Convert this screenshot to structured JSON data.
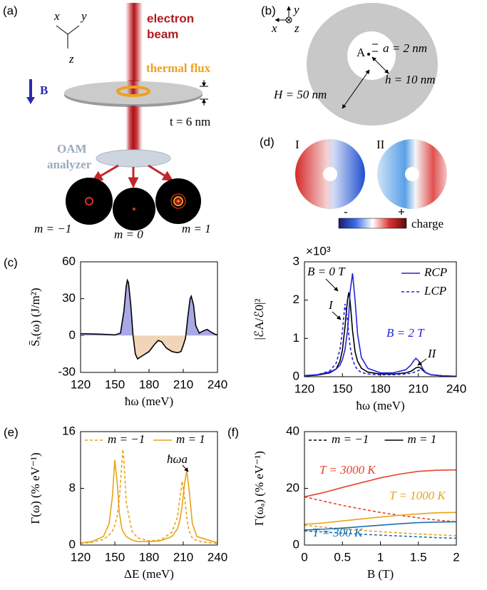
{
  "diagram_a": {
    "panel_label": "(a)",
    "axes": [
      "x",
      "y",
      "z"
    ],
    "beam_label": [
      "electron",
      "beam"
    ],
    "flux_label": "thermal flux",
    "field_label": "B",
    "thickness_label": "t = 6 nm",
    "analyzer_label": [
      "OAM",
      "analyzer"
    ],
    "outputs": [
      "m = −1",
      "m = 0",
      "m = 1"
    ]
  },
  "diagram_b": {
    "panel_label": "(b)",
    "axes": [
      "y",
      "x",
      "z"
    ],
    "point_label": "A",
    "inner_radius_label": "a = 2 nm",
    "hole_label": "h = 10 nm",
    "outer_label": "H = 50 nm"
  },
  "diagram_d": {
    "panel_label": "(d)",
    "modes": [
      "I",
      "II"
    ],
    "colorbar": {
      "min_label": "-",
      "max_label": "+",
      "label": "charge"
    }
  },
  "chart_data": [
    {
      "type": "line",
      "panel_label": "(c)",
      "y_label": "S̄ₓ(ω) (J/m²)",
      "x_label": "ħω (meV)",
      "x": [
        120,
        130,
        140,
        150,
        155,
        158,
        160,
        161,
        162,
        164,
        166,
        168,
        170,
        175,
        180,
        185,
        188,
        191,
        195,
        200,
        205,
        208,
        210,
        212,
        214,
        216,
        217,
        219,
        221,
        224,
        228,
        231,
        234,
        238,
        240
      ],
      "series": [
        {
          "color": "#000000",
          "values": [
            1.5,
            1.3,
            1,
            0.5,
            2,
            20,
            40,
            45,
            43,
            25,
            0,
            -15,
            -19,
            -16,
            -13,
            -7,
            -4,
            -5,
            -10,
            -13,
            -14,
            -13,
            -8,
            -2,
            15,
            30,
            32,
            25,
            8,
            2,
            4,
            5,
            3,
            1,
            0.5
          ]
        }
      ],
      "positive_color": "#a9a9e8",
      "negative_color": "#f2d5b8",
      "xlim": [
        120,
        240
      ],
      "xticks": [
        120,
        150,
        180,
        210,
        240
      ],
      "ylim": [
        -30,
        60
      ],
      "yticks": [
        -30,
        0,
        30,
        60
      ]
    },
    {
      "type": "line",
      "y_label": "|ℰA/ℰ0|²",
      "x_label": "ħω (meV)",
      "multiplier_label": "×10³",
      "x": [
        120,
        130,
        140,
        145,
        148,
        150,
        152,
        154,
        155,
        156,
        158,
        160,
        162,
        165,
        170,
        180,
        190,
        200,
        204,
        206,
        208,
        210,
        212,
        214,
        216,
        220,
        230,
        240
      ],
      "series": [
        {
          "color": "#000000",
          "values": [
            0.02,
            0.04,
            0.1,
            0.2,
            0.4,
            0.7,
            1.3,
            2.0,
            2.2,
            2.0,
            1.2,
            0.65,
            0.4,
            0.22,
            0.12,
            0.07,
            0.07,
            0.1,
            0.14,
            0.18,
            0.23,
            0.25,
            0.22,
            0.15,
            0.1,
            0.05,
            0.02,
            0.01
          ]
        },
        {
          "name": "RCP",
          "color": "#2323d6",
          "values": [
            0.03,
            0.05,
            0.12,
            0.2,
            0.3,
            0.45,
            0.7,
            1.2,
            1.6,
            2.2,
            2.7,
            2.0,
            1.1,
            0.5,
            0.22,
            0.1,
            0.1,
            0.18,
            0.3,
            0.4,
            0.48,
            0.42,
            0.3,
            0.18,
            0.1,
            0.05,
            0.02,
            0.01
          ]
        },
        {
          "name": "LCP",
          "color": "#2323d6",
          "dash": true,
          "values": [
            0.02,
            0.05,
            0.15,
            0.35,
            0.7,
            1.2,
            1.9,
            1.5,
            1.1,
            0.8,
            0.45,
            0.28,
            0.18,
            0.11,
            0.07,
            0.05,
            0.05,
            0.07,
            0.09,
            0.11,
            0.13,
            0.16,
            0.18,
            0.16,
            0.11,
            0.05,
            0.02,
            0.01
          ]
        }
      ],
      "legend_position": "upper right",
      "annotations": [
        {
          "text": "B = 0 T",
          "color": "#000000"
        },
        {
          "text": "B = 2 T",
          "color": "#2323d6"
        },
        {
          "text": "I",
          "color": "#000000"
        },
        {
          "text": "II",
          "color": "#000000"
        }
      ],
      "xlim": [
        120,
        240
      ],
      "xticks": [
        120,
        150,
        180,
        210,
        240
      ],
      "ylim": [
        0,
        3
      ],
      "yticks": [
        0,
        1,
        2,
        3
      ]
    },
    {
      "type": "line",
      "panel_label": "(e)",
      "y_label": "Γ(ω) (% eV⁻¹)",
      "x_label": "ΔE (meV)",
      "x": [
        120,
        130,
        140,
        145,
        148,
        150,
        152,
        154,
        156,
        157,
        158,
        160,
        165,
        170,
        180,
        190,
        200,
        205,
        207,
        209,
        211,
        213,
        215,
        218,
        222,
        226,
        230,
        240
      ],
      "series": [
        {
          "name": "m = −1",
          "color": "#e8a317",
          "dash": true,
          "values": [
            0.2,
            0.4,
            0.8,
            1.4,
            2,
            2.8,
            4,
            6.5,
            11,
            13.5,
            12,
            6,
            2,
            1,
            0.6,
            0.7,
            1.8,
            4,
            6.5,
            9,
            7,
            4,
            2,
            1,
            0.6,
            0.5,
            0.4,
            0.2
          ]
        },
        {
          "name": "m = 1",
          "color": "#e8a317",
          "values": [
            0.3,
            0.5,
            1.2,
            3,
            7,
            12,
            9,
            4.5,
            2.5,
            2,
            1.7,
            1.2,
            0.7,
            0.5,
            0.5,
            0.6,
            1.2,
            2.3,
            3.5,
            5.5,
            8.5,
            10.5,
            8,
            3,
            1.2,
            1,
            0.8,
            0.3
          ]
        }
      ],
      "legend_position": "top",
      "annotations": [
        {
          "text": "ħωa",
          "color": "#000000"
        }
      ],
      "xlim": [
        120,
        240
      ],
      "xticks": [
        120,
        150,
        180,
        210,
        240
      ],
      "ylim": [
        0,
        16
      ],
      "yticks": [
        0,
        8,
        16
      ]
    },
    {
      "type": "line",
      "panel_label": "(f)",
      "y_label": "Γ(ωₐ) (% eV⁻¹)",
      "x_label": "B (T)",
      "x": [
        0,
        0.25,
        0.5,
        0.75,
        1,
        1.25,
        1.5,
        1.75,
        2
      ],
      "series": [
        {
          "color": "#e8412c",
          "values": [
            17,
            18.5,
            20.3,
            22,
            23.7,
            25,
            26,
            26.4,
            26.5
          ]
        },
        {
          "color": "#e8412c",
          "dash": true,
          "values": [
            17,
            15.5,
            14,
            12.7,
            11.5,
            10.5,
            9.6,
            8.8,
            8.2
          ]
        },
        {
          "color": "#e8a317",
          "values": [
            7.3,
            7.8,
            8.5,
            9.2,
            9.9,
            10.5,
            11,
            11.4,
            11.5
          ]
        },
        {
          "color": "#e8a317",
          "dash": true,
          "values": [
            7,
            6.3,
            5.7,
            5.2,
            4.7,
            4.3,
            3.9,
            3.6,
            3.3
          ]
        },
        {
          "color": "#1a70b0",
          "values": [
            5.3,
            5.6,
            6,
            6.5,
            7,
            7.5,
            7.9,
            8.1,
            8.2
          ]
        },
        {
          "color": "#1a70b0",
          "dash": true,
          "values": [
            5,
            4.6,
            4.2,
            3.8,
            3.5,
            3.2,
            2.9,
            2.6,
            2.4
          ]
        }
      ],
      "legend": [
        {
          "name": "m = −1",
          "color": "#000000",
          "dash": true
        },
        {
          "name": "m = 1",
          "color": "#000000"
        }
      ],
      "legend_position": "top",
      "annotations": [
        {
          "text": "T = 3000 K",
          "color": "#e8412c"
        },
        {
          "text": "T = 1000 K",
          "color": "#e8a317"
        },
        {
          "text": "T = 300 K",
          "color": "#1a70b0"
        }
      ],
      "xlim": [
        0,
        2
      ],
      "xticks": [
        0,
        0.5,
        1,
        1.5,
        2
      ],
      "ylim": [
        0,
        40
      ],
      "yticks": [
        0,
        20,
        40
      ]
    }
  ]
}
